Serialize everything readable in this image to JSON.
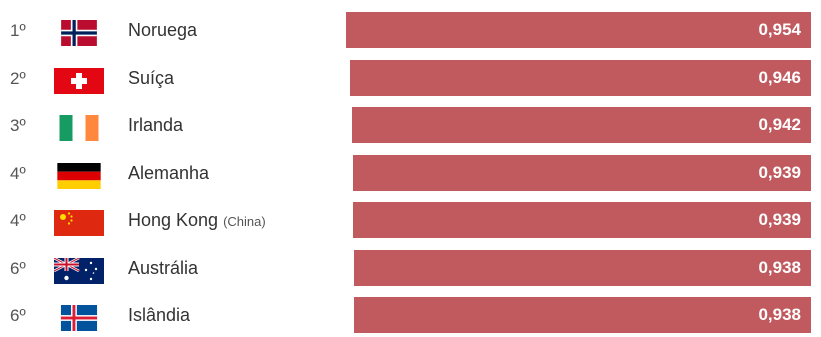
{
  "chart_data": {
    "type": "bar",
    "orientation": "horizontal",
    "bar_color": "#c05a5e",
    "value_label_color": "#ffffff",
    "xlim": [
      0,
      0.954
    ],
    "rows": [
      {
        "rank": "1º",
        "country": "Noruega",
        "note": "",
        "flag": "norway-flag-icon",
        "value": 0.954,
        "label": "0,954"
      },
      {
        "rank": "2º",
        "country": "Suíça",
        "note": "",
        "flag": "switzerland-flag-icon",
        "value": 0.946,
        "label": "0,946"
      },
      {
        "rank": "3º",
        "country": "Irlanda",
        "note": "",
        "flag": "ireland-flag-icon",
        "value": 0.942,
        "label": "0,942"
      },
      {
        "rank": "4º",
        "country": "Alemanha",
        "note": "",
        "flag": "germany-flag-icon",
        "value": 0.939,
        "label": "0,939"
      },
      {
        "rank": "4º",
        "country": "Hong Kong",
        "note": "(China)",
        "flag": "hong-kong-flag-icon",
        "value": 0.939,
        "label": "0,939"
      },
      {
        "rank": "6º",
        "country": "Austrália",
        "note": "",
        "flag": "australia-flag-icon",
        "value": 0.938,
        "label": "0,938"
      },
      {
        "rank": "6º",
        "country": "Islândia",
        "note": "",
        "flag": "iceland-flag-icon",
        "value": 0.938,
        "label": "0,938"
      }
    ]
  }
}
